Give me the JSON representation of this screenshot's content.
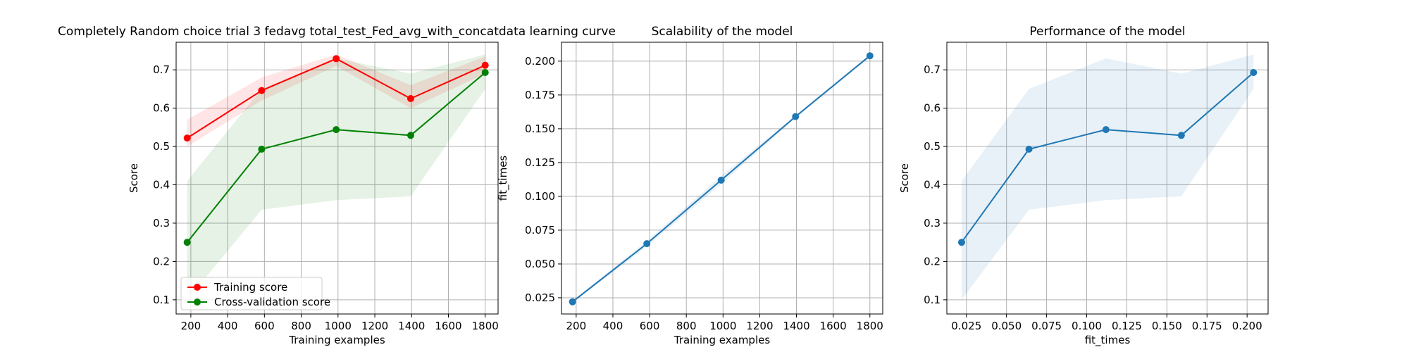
{
  "chart_data": [
    {
      "type": "line",
      "title": "Completely Random choice trial 3 fedavg total_test_Fed_avg_with_concatdata learning curve",
      "xlabel": "Training examples",
      "ylabel": "Score",
      "xlim": [
        120,
        1870
      ],
      "ylim": [
        0.063,
        0.772
      ],
      "xticks": [
        200,
        400,
        600,
        800,
        1000,
        1200,
        1400,
        1600,
        1800
      ],
      "yticks": [
        0.1,
        0.2,
        0.3,
        0.4,
        0.5,
        0.6,
        0.7
      ],
      "grid": true,
      "legend": "lower-left",
      "x": [
        180,
        585,
        990,
        1395,
        1800
      ],
      "series": [
        {
          "name": "Training score",
          "color": "#ff0000",
          "values": [
            0.522,
            0.646,
            0.729,
            0.625,
            0.712
          ],
          "band_lower": [
            0.5,
            0.62,
            0.71,
            0.6,
            0.69
          ],
          "band_upper": [
            0.57,
            0.68,
            0.74,
            0.66,
            0.735
          ]
        },
        {
          "name": "Cross-validation score",
          "color": "#008000",
          "values": [
            0.25,
            0.493,
            0.544,
            0.529,
            0.693
          ],
          "band_lower": [
            0.1,
            0.335,
            0.36,
            0.37,
            0.65
          ],
          "band_upper": [
            0.41,
            0.65,
            0.73,
            0.69,
            0.74
          ]
        }
      ]
    },
    {
      "type": "line",
      "title": "Scalability of the model",
      "xlabel": "Training examples",
      "ylabel": "fit_times",
      "xlim": [
        120,
        1870
      ],
      "ylim": [
        0.013,
        0.214
      ],
      "xticks": [
        200,
        400,
        600,
        800,
        1000,
        1200,
        1400,
        1600,
        1800
      ],
      "yticks": [
        0.025,
        0.05,
        0.075,
        0.1,
        0.125,
        0.15,
        0.175,
        0.2
      ],
      "ytick_labels": [
        "0.025",
        "0.050",
        "0.075",
        "0.100",
        "0.125",
        "0.150",
        "0.175",
        "0.200"
      ],
      "grid": true,
      "x": [
        180,
        585,
        990,
        1395,
        1800
      ],
      "series": [
        {
          "color": "#1f77b4",
          "values": [
            0.022,
            0.065,
            0.112,
            0.159,
            0.204
          ],
          "band_lower": [
            0.021,
            0.063,
            0.109,
            0.158,
            0.203
          ],
          "band_upper": [
            0.023,
            0.067,
            0.115,
            0.16,
            0.205
          ]
        }
      ]
    },
    {
      "type": "line",
      "title": "Performance of the model",
      "xlabel": "fit_times",
      "ylabel": "Score",
      "xlim": [
        0.0128,
        0.2131
      ],
      "ylim": [
        0.063,
        0.772
      ],
      "xticks": [
        0.025,
        0.05,
        0.075,
        0.1,
        0.125,
        0.15,
        0.175,
        0.2
      ],
      "xtick_labels": [
        "0.025",
        "0.050",
        "0.075",
        "0.100",
        "0.125",
        "0.150",
        "0.175",
        "0.200"
      ],
      "yticks": [
        0.1,
        0.2,
        0.3,
        0.4,
        0.5,
        0.6,
        0.7
      ],
      "grid": true,
      "x": [
        0.022,
        0.064,
        0.112,
        0.159,
        0.204
      ],
      "series": [
        {
          "color": "#1f77b4",
          "values": [
            0.25,
            0.493,
            0.544,
            0.529,
            0.693
          ],
          "band_lower": [
            0.1,
            0.335,
            0.36,
            0.37,
            0.65
          ],
          "band_upper": [
            0.41,
            0.65,
            0.73,
            0.69,
            0.74
          ]
        }
      ]
    }
  ]
}
